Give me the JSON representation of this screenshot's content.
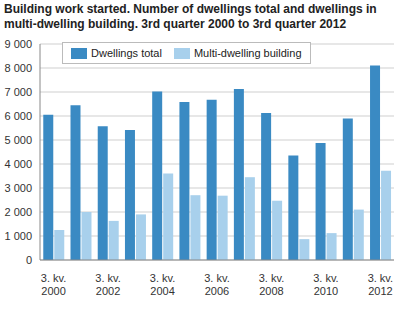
{
  "chart_data": {
    "type": "bar",
    "title": "Building work started. Number of dwellings total and dwellings in multi-dwelling building. 3rd quarter 2000 to 3rd quarter 2012",
    "categories": [
      "3. kv.\n2000",
      null,
      "3. kv.\n2002",
      null,
      "3. kv.\n2004",
      null,
      "3. kv.\n2006",
      null,
      "3. kv.\n2008",
      null,
      "3. kv.\n2010",
      null,
      "3. kv.\n2012"
    ],
    "series": [
      {
        "name": "Dwellings total",
        "color": "#3a8ac3",
        "values": [
          6050,
          6450,
          5570,
          5420,
          7020,
          6580,
          6680,
          7120,
          6130,
          4350,
          4870,
          5900,
          8100
        ]
      },
      {
        "name": "Multi-dwelling building",
        "color": "#a8d0ec",
        "values": [
          1250,
          2000,
          1630,
          1900,
          3600,
          2700,
          2680,
          3450,
          2470,
          870,
          1120,
          2100,
          3720
        ]
      }
    ],
    "ylim": [
      0,
      9000
    ],
    "yticks": [
      0,
      {
        "value": 1000,
        "label": "1 000"
      },
      {
        "value": 2000,
        "label": "2 000"
      },
      {
        "value": 3000,
        "label": "3 000"
      },
      {
        "value": 4000,
        "label": "4 000"
      },
      {
        "value": 5000,
        "label": "5 000"
      },
      {
        "value": 6000,
        "label": "6 000"
      },
      {
        "value": 7000,
        "label": "7 000"
      },
      {
        "value": 8000,
        "label": "8 000"
      },
      {
        "value": 9000,
        "label": "9 000"
      }
    ],
    "grid": true,
    "legend": "upper left"
  }
}
